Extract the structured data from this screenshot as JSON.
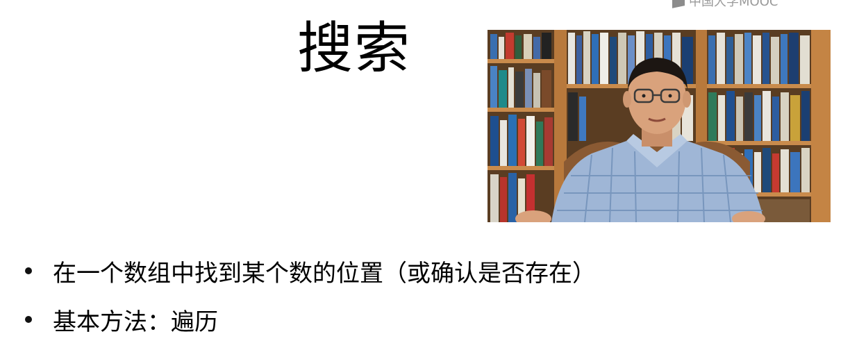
{
  "watermark": {
    "text": "中国大学MOOC"
  },
  "slide": {
    "title": "搜索",
    "bullets": [
      "在一个数组中找到某个数的位置（或确认是否存在）",
      "基本方法：遍历"
    ]
  },
  "video": {
    "icon": "lecturer-video",
    "colors": {
      "shelf_wood": "#b8793c",
      "shirt": "#9fb6d6",
      "skin": "#d9a27c"
    }
  }
}
